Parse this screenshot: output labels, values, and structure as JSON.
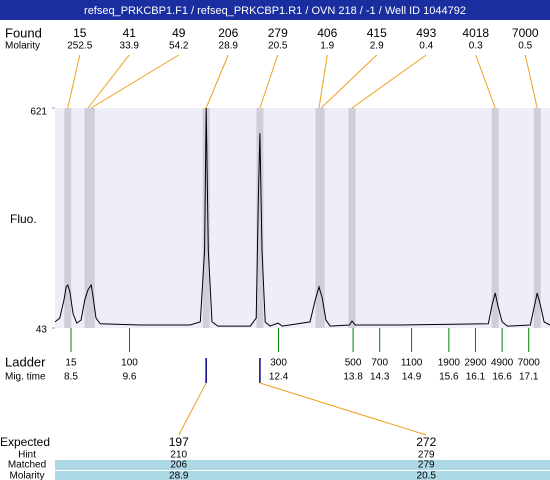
{
  "title": "refseq_PRKCBP1.F1 / refseq_PRKCBP1.R1 / OVN 218 / -1 / Well ID 1044792",
  "chart_data": {
    "type": "electropherogram",
    "y_label": "Fluo.",
    "ylim": [
      43,
      621
    ],
    "yticks": [
      43,
      621
    ],
    "xlim": [
      8.2,
      17.5
    ],
    "trace": {
      "color": "#000000",
      "x": [
        8.2,
        8.29,
        8.37,
        8.41,
        8.44,
        8.48,
        8.54,
        8.61,
        8.69,
        8.76,
        8.82,
        8.88,
        8.91,
        8.97,
        9.05,
        9.8,
        10.74,
        10.93,
        11.01,
        11.04,
        11.08,
        11.15,
        11.26,
        11.87,
        11.98,
        12.02,
        12.05,
        12.09,
        12.15,
        12.24,
        12.39,
        12.47,
        12.99,
        13.09,
        13.16,
        13.22,
        13.29,
        13.37,
        13.73,
        13.78,
        13.84,
        14.68,
        16.34,
        16.41,
        16.47,
        16.52,
        16.6,
        16.7,
        17.13,
        17.21,
        17.26,
        17.32,
        17.39,
        17.5
      ],
      "y": [
        59,
        69,
        117,
        151,
        156,
        138,
        80,
        56,
        64,
        117,
        143,
        156,
        130,
        69,
        54,
        51,
        51,
        59,
        248,
        621,
        248,
        59,
        48,
        48,
        69,
        379,
        555,
        248,
        59,
        48,
        56,
        48,
        59,
        117,
        151,
        122,
        64,
        48,
        51,
        61,
        51,
        51,
        54,
        103,
        135,
        103,
        59,
        48,
        51,
        103,
        135,
        103,
        59,
        51
      ]
    },
    "found": {
      "label": "Found",
      "molarity_label": "Molarity",
      "sizes": [
        15,
        41,
        49,
        206,
        279,
        406,
        415,
        493,
        4018,
        7000
      ],
      "molarity": [
        252.5,
        33.9,
        54.2,
        28.9,
        20.5,
        1.9,
        2.9,
        0.4,
        0.3,
        0.5
      ],
      "times": [
        8.44,
        8.82,
        8.88,
        11.04,
        12.05,
        13.16,
        13.2,
        13.78,
        16.47,
        17.26
      ]
    },
    "ladder": {
      "label": "Ladder",
      "time_label": "Mig. time",
      "color": "#008000",
      "sizes": [
        15,
        100,
        300,
        500,
        700,
        1100,
        1900,
        2900,
        4900,
        7000
      ],
      "times": [
        8.5,
        9.6,
        12.4,
        13.8,
        14.3,
        14.9,
        15.6,
        16.1,
        16.6,
        17.1
      ]
    },
    "expected": {
      "label": "Expected",
      "values": [
        197,
        272
      ],
      "hint_label": "Hint",
      "hint": [
        210,
        279
      ],
      "matched_label": "Matched",
      "matched": [
        206,
        279
      ],
      "molarity_label": "Molarity",
      "molarity": [
        28.9,
        20.5
      ]
    }
  }
}
